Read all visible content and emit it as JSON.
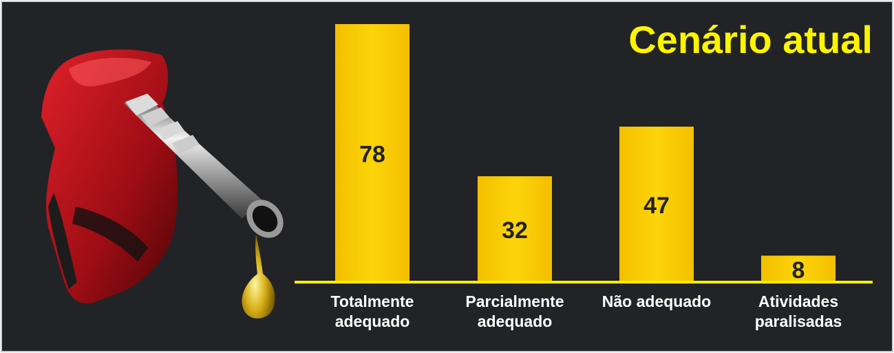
{
  "colors": {
    "background": "#222326",
    "bar": "#fbcd03",
    "title": "#fdf400",
    "axis": "#fdee00",
    "label_text": "#ffffff",
    "value_text": "#222222"
  },
  "pump_icon": "fuel-nozzle-icon",
  "chart_data": {
    "type": "bar",
    "title": "Cenário atual",
    "categories": [
      [
        "Totalmente",
        "adequado"
      ],
      [
        "Parcialmente",
        "adequado"
      ],
      [
        "Não adequado"
      ],
      [
        "Atividades",
        "paralisadas"
      ]
    ],
    "values": [
      78,
      32,
      47,
      8
    ],
    "value_labels": [
      "78",
      "32",
      "47",
      "8"
    ],
    "ylim": [
      0,
      78
    ],
    "grid": false,
    "legend": "none"
  }
}
